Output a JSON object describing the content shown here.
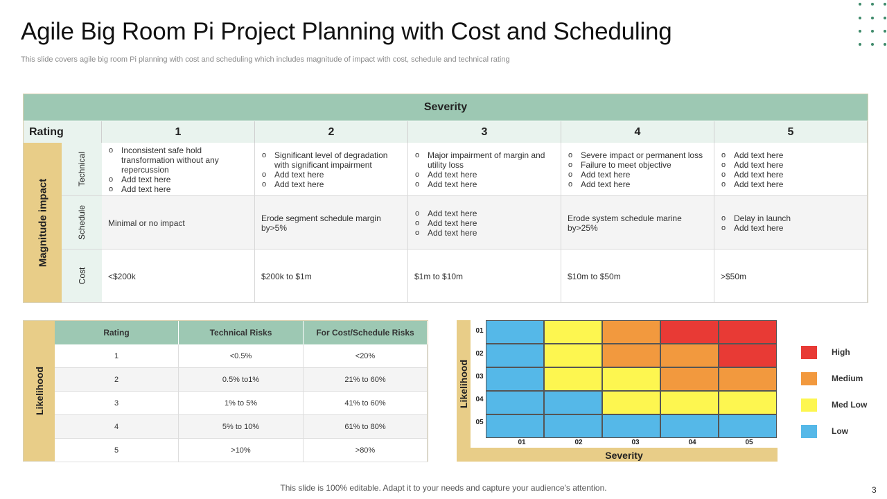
{
  "title": "Agile Big Room Pi Project Planning with Cost and Scheduling",
  "subtitle": "This slide covers agile big room Pi planning with cost and scheduling which includes magnitude of impact with cost, schedule and technical rating",
  "severity_table": {
    "header": "Severity",
    "rating_label": "Rating",
    "columns": [
      "1",
      "2",
      "3",
      "4",
      "5"
    ],
    "magnitude_label": "Magnitude impact",
    "rows": [
      {
        "category": "Technical",
        "cells": [
          [
            "Inconsistent safe hold transformation without any repercussion",
            "Add text here",
            "Add text here"
          ],
          [
            "Significant level of degradation with significant impairment",
            "Add text here",
            "Add text here"
          ],
          [
            "Major impairment of margin and utility loss",
            "Add text here",
            "Add text here"
          ],
          [
            "Severe impact or permanent loss",
            "Failure to meet objective",
            "Add text here",
            "Add text here"
          ],
          [
            "Add text here",
            "Add text here",
            "Add text here",
            "Add text here"
          ]
        ]
      },
      {
        "category": "Schedule",
        "cells": [
          "Minimal or no impact",
          "Erode segment schedule margin by>5%",
          [
            "Add text here",
            "Add text here",
            "Add text here"
          ],
          "Erode system schedule marine by>25%",
          [
            "Delay in launch",
            "Add text here"
          ]
        ]
      },
      {
        "category": "Cost",
        "cells": [
          "<$200k",
          "$200k to $1m",
          "$1m to $10m",
          "$10m to $50m",
          ">$50m"
        ]
      }
    ]
  },
  "likelihood_table": {
    "side_label": "Likelihood",
    "headers": [
      "Rating",
      "Technical Risks",
      "For Cost/Schedule Risks"
    ],
    "rows": [
      [
        "1",
        "<0.5%",
        "<20%"
      ],
      [
        "2",
        "0.5% to1%",
        "21% to 60%"
      ],
      [
        "3",
        "1% to 5%",
        "41% to 60%"
      ],
      [
        "4",
        "5% to 10%",
        "61% to 80%"
      ],
      [
        "5",
        ">10%",
        ">80%"
      ]
    ]
  },
  "heatmap": {
    "y_label": "Likelihood",
    "x_label": "Severity",
    "y_ticks": [
      "01",
      "02",
      "03",
      "04",
      "05"
    ],
    "x_ticks": [
      "01",
      "02",
      "03",
      "04",
      "05"
    ],
    "grid": [
      [
        "low",
        "medlow",
        "medium",
        "high",
        "high"
      ],
      [
        "low",
        "medlow",
        "medium",
        "medium",
        "high"
      ],
      [
        "low",
        "medlow",
        "medlow",
        "medium",
        "medium"
      ],
      [
        "low",
        "low",
        "medlow",
        "medlow",
        "medlow"
      ],
      [
        "low",
        "low",
        "low",
        "low",
        "low"
      ]
    ],
    "colors": {
      "high": "#e83a35",
      "medium": "#f2993e",
      "medlow": "#fdf650",
      "low": "#55b8e8"
    }
  },
  "legend": [
    {
      "key": "high",
      "label": "High"
    },
    {
      "key": "medium",
      "label": "Medium"
    },
    {
      "key": "medlow",
      "label": "Med Low"
    },
    {
      "key": "low",
      "label": "Low"
    }
  ],
  "footer": "This slide is 100% editable. Adapt it to your needs and capture your audience's attention.",
  "page_number": "3"
}
